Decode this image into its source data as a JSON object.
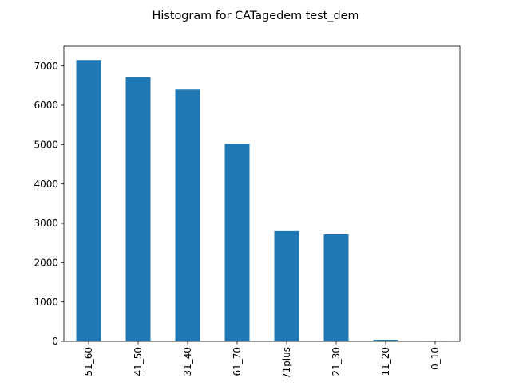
{
  "chart_data": {
    "type": "bar",
    "title": "Histogram for CATagedem test_dem",
    "xlabel": "",
    "ylabel": "",
    "categories": [
      "51_60",
      "41_50",
      "31_40",
      "61_70",
      "71plus",
      "21_30",
      "11_20",
      "0_10"
    ],
    "values": [
      7150,
      6720,
      6400,
      5020,
      2800,
      2720,
      40,
      3
    ],
    "ylim": [
      0,
      7500
    ],
    "yticks": [
      0,
      1000,
      2000,
      3000,
      4000,
      5000,
      6000,
      7000
    ],
    "bar_color": "#1f77b4",
    "grid": false,
    "legend": "none"
  }
}
